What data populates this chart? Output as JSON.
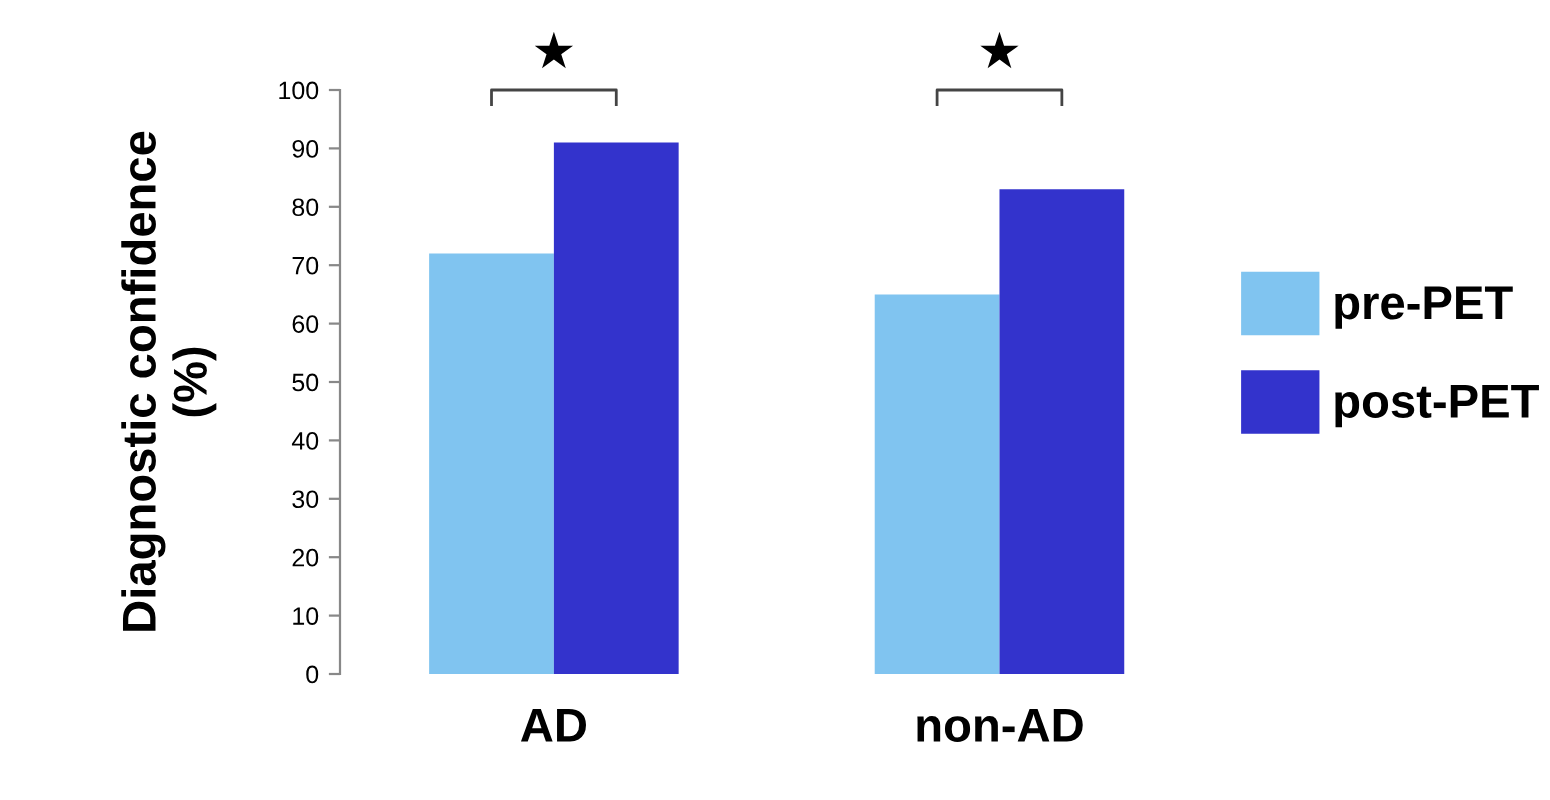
{
  "chart_data": {
    "type": "bar",
    "ylabel": "Diagnostic confidence\n(%)",
    "categories": [
      "AD",
      "non-AD"
    ],
    "series": [
      {
        "name": "pre-PET",
        "color": "#80c4f0",
        "values": [
          72,
          65
        ]
      },
      {
        "name": "post-PET",
        "color": "#3333cc",
        "values": [
          91,
          83
        ]
      }
    ],
    "ylim": [
      0,
      100
    ],
    "yticks": [
      0,
      10,
      20,
      30,
      40,
      50,
      60,
      70,
      80,
      90,
      100
    ],
    "grid": false,
    "legend": "right",
    "annotations": [
      "★",
      "★"
    ]
  }
}
